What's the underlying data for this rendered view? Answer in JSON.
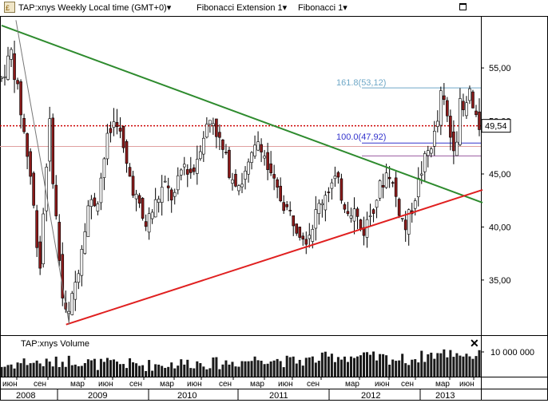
{
  "toolbar": {
    "instrument": "TAP:xnys Weekly Local time (GMT+0)",
    "study1": "Fibonacci Extension 1",
    "study2": "Fibonacci 1",
    "dropdown_glyph": "▾"
  },
  "volume_label": "TAP:xnys Volume",
  "colors": {
    "up_candle": "#ffffff",
    "down_candle": "#8b1a1a",
    "upper_trendline": "#2e8b2e",
    "lower_trendline": "#e02020",
    "price_line": "#cc0000",
    "fib_blue": "#3333cc",
    "fib_grey_blue": "#6fa8c7"
  },
  "chart_data": {
    "type": "candlestick",
    "timeframe": "Weekly",
    "y_ticks": [
      "55,00",
      "50,00",
      "45,00",
      "40,00",
      "35,00"
    ],
    "ylim": [
      29.8,
      59.9
    ],
    "volume_ticks": [
      "10 000 000"
    ],
    "volume_ylim": [
      0,
      20000000
    ],
    "x_month_labels": [
      "июн",
      "сен",
      "мар",
      "июн",
      "сен",
      "мар",
      "июн",
      "сен",
      "мар",
      "июн",
      "сен",
      "мар",
      "июн",
      "сен",
      "мар",
      "июн"
    ],
    "x_year_labels": [
      "2008",
      "2009",
      "2010",
      "2011",
      "2012",
      "2013"
    ],
    "last_price_label": "49,54",
    "last_price": 49.54,
    "fib_labels": [
      {
        "text": "161.8(53,12)",
        "price": 53.12
      },
      {
        "text": "100.0(47,92)",
        "price": 47.92
      }
    ],
    "horizontal_levels": [
      {
        "name": "last-price-dotted",
        "price": 49.54
      },
      {
        "name": "fib-161.8",
        "price": 53.12
      },
      {
        "name": "fib-100",
        "price": 47.92
      },
      {
        "name": "fib-base",
        "price": 46.7
      },
      {
        "name": "pink-level",
        "price": 47.6
      }
    ],
    "trendlines": [
      {
        "name": "upper-green",
        "from": {
          "x": 0.0,
          "y": 59.0
        },
        "to": {
          "x": 1.0,
          "y": 42.3
        }
      },
      {
        "name": "lower-red",
        "from": {
          "x": 0.135,
          "y": 30.8
        },
        "to": {
          "x": 1.0,
          "y": 43.5
        }
      },
      {
        "name": "thin-grey",
        "from": {
          "x": 0.03,
          "y": 59.5
        },
        "to": {
          "x": 0.135,
          "y": 30.8
        }
      }
    ],
    "price_path": [
      [
        0.0,
        54.0
      ],
      [
        0.02,
        56.5
      ],
      [
        0.04,
        51.0
      ],
      [
        0.06,
        45.0
      ],
      [
        0.08,
        36.0
      ],
      [
        0.095,
        47.0
      ],
      [
        0.1,
        50.0
      ],
      [
        0.11,
        43.0
      ],
      [
        0.13,
        32.0
      ],
      [
        0.14,
        31.5
      ],
      [
        0.16,
        36.0
      ],
      [
        0.18,
        42.0
      ],
      [
        0.2,
        42.5
      ],
      [
        0.22,
        48.0
      ],
      [
        0.24,
        50.5
      ],
      [
        0.26,
        46.0
      ],
      [
        0.28,
        43.0
      ],
      [
        0.3,
        40.0
      ],
      [
        0.32,
        42.0
      ],
      [
        0.34,
        44.0
      ],
      [
        0.36,
        42.5
      ],
      [
        0.38,
        46.0
      ],
      [
        0.4,
        45.0
      ],
      [
        0.42,
        48.5
      ],
      [
        0.44,
        50.5
      ],
      [
        0.46,
        47.5
      ],
      [
        0.48,
        45.0
      ],
      [
        0.5,
        44.0
      ],
      [
        0.52,
        46.0
      ],
      [
        0.54,
        48.5
      ],
      [
        0.56,
        45.0
      ],
      [
        0.58,
        43.0
      ],
      [
        0.6,
        41.5
      ],
      [
        0.62,
        40.0
      ],
      [
        0.64,
        39.0
      ],
      [
        0.66,
        41.5
      ],
      [
        0.68,
        43.5
      ],
      [
        0.7,
        44.5
      ],
      [
        0.72,
        42.0
      ],
      [
        0.74,
        41.5
      ],
      [
        0.755,
        39.3
      ],
      [
        0.77,
        41.0
      ],
      [
        0.79,
        43.5
      ],
      [
        0.81,
        45.5
      ],
      [
        0.83,
        42.0
      ],
      [
        0.845,
        39.8
      ],
      [
        0.86,
        42.0
      ],
      [
        0.88,
        45.5
      ],
      [
        0.9,
        48.0
      ],
      [
        0.91,
        49.0
      ],
      [
        0.92,
        52.5
      ],
      [
        0.93,
        51.0
      ],
      [
        0.94,
        48.5
      ],
      [
        0.95,
        47.6
      ],
      [
        0.96,
        51.5
      ],
      [
        0.97,
        50.5
      ],
      [
        0.98,
        53.0
      ],
      [
        0.99,
        50.0
      ],
      [
        1.0,
        49.54
      ]
    ],
    "volume_path": [
      [
        0.0,
        0.22
      ],
      [
        0.05,
        0.35
      ],
      [
        0.1,
        0.3
      ],
      [
        0.15,
        0.4
      ],
      [
        0.2,
        0.28
      ],
      [
        0.25,
        0.3
      ],
      [
        0.3,
        0.25
      ],
      [
        0.35,
        0.28
      ],
      [
        0.4,
        0.32
      ],
      [
        0.45,
        0.3
      ],
      [
        0.5,
        0.35
      ],
      [
        0.55,
        0.45
      ],
      [
        0.6,
        0.35
      ],
      [
        0.65,
        0.4
      ],
      [
        0.7,
        0.5
      ],
      [
        0.75,
        0.48
      ],
      [
        0.8,
        0.45
      ],
      [
        0.85,
        0.4
      ],
      [
        0.9,
        0.55
      ],
      [
        0.95,
        0.6
      ],
      [
        1.0,
        0.5
      ]
    ]
  }
}
